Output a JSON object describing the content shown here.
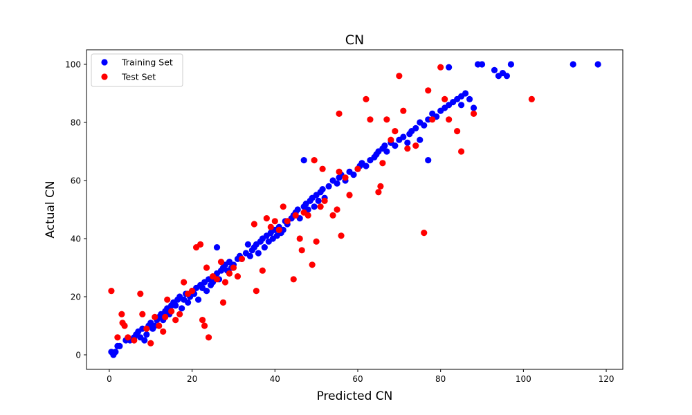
{
  "chart_data": {
    "type": "scatter",
    "title": "CN",
    "xlabel": "Predicted CN",
    "ylabel": "Actual CN",
    "xlim": [
      -5.5,
      124
    ],
    "ylim": [
      -5,
      105
    ],
    "xticks": [
      0,
      20,
      40,
      60,
      80,
      100,
      120
    ],
    "yticks": [
      0,
      20,
      40,
      60,
      80,
      100
    ],
    "grid": false,
    "legend": "top-left",
    "series": [
      {
        "name": "Training Set",
        "color": "#0000ff",
        "points": [
          [
            0.5,
            1
          ],
          [
            1,
            0
          ],
          [
            1.5,
            1
          ],
          [
            2,
            3
          ],
          [
            2.5,
            3
          ],
          [
            4,
            5
          ],
          [
            5,
            5
          ],
          [
            6,
            6
          ],
          [
            6.5,
            7
          ],
          [
            7,
            8
          ],
          [
            7.5,
            6
          ],
          [
            8,
            9
          ],
          [
            8.5,
            5
          ],
          [
            9,
            7
          ],
          [
            9.5,
            10
          ],
          [
            10,
            11
          ],
          [
            10.5,
            9
          ],
          [
            11,
            10
          ],
          [
            11.5,
            12
          ],
          [
            12,
            13
          ],
          [
            12.5,
            14
          ],
          [
            13,
            12
          ],
          [
            13.5,
            15
          ],
          [
            14,
            16
          ],
          [
            14.5,
            14
          ],
          [
            15,
            17
          ],
          [
            15.5,
            18
          ],
          [
            16,
            17
          ],
          [
            16.5,
            19
          ],
          [
            17,
            20
          ],
          [
            17.5,
            16
          ],
          [
            18,
            19
          ],
          [
            18.5,
            21
          ],
          [
            19,
            18
          ],
          [
            19.5,
            20
          ],
          [
            20,
            22
          ],
          [
            20.5,
            21
          ],
          [
            21,
            23
          ],
          [
            21.5,
            19
          ],
          [
            22,
            24
          ],
          [
            22.5,
            23
          ],
          [
            23,
            25
          ],
          [
            23.5,
            22
          ],
          [
            24,
            26
          ],
          [
            24.5,
            24
          ],
          [
            25,
            25
          ],
          [
            25.5,
            27
          ],
          [
            26,
            28
          ],
          [
            26.5,
            26
          ],
          [
            27,
            29
          ],
          [
            27.5,
            30
          ],
          [
            28,
            31
          ],
          [
            28.5,
            29
          ],
          [
            29,
            32
          ],
          [
            29.5,
            30
          ],
          [
            30,
            31
          ],
          [
            31,
            33
          ],
          [
            31.5,
            34
          ],
          [
            32,
            33
          ],
          [
            33,
            35
          ],
          [
            33.5,
            38
          ],
          [
            34,
            34
          ],
          [
            34.5,
            36
          ],
          [
            35,
            37
          ],
          [
            35.5,
            38
          ],
          [
            36,
            35
          ],
          [
            36.5,
            39
          ],
          [
            37,
            40
          ],
          [
            37.5,
            37
          ],
          [
            38,
            41
          ],
          [
            38.5,
            39
          ],
          [
            39,
            42
          ],
          [
            39.5,
            40
          ],
          [
            40,
            43
          ],
          [
            40.5,
            41
          ],
          [
            41,
            44
          ],
          [
            41.5,
            42
          ],
          [
            42,
            43
          ],
          [
            42.5,
            46
          ],
          [
            43,
            45
          ],
          [
            44,
            47
          ],
          [
            44.5,
            48
          ],
          [
            45,
            49
          ],
          [
            45.5,
            50
          ],
          [
            46,
            47
          ],
          [
            47,
            51
          ],
          [
            47.5,
            52
          ],
          [
            48,
            50
          ],
          [
            48.5,
            53
          ],
          [
            49,
            54
          ],
          [
            49.5,
            51
          ],
          [
            50,
            55
          ],
          [
            50.5,
            53
          ],
          [
            51,
            56
          ],
          [
            51.5,
            57
          ],
          [
            52,
            54
          ],
          [
            53,
            58
          ],
          [
            54,
            60
          ],
          [
            55,
            59
          ],
          [
            55.5,
            61
          ],
          [
            56,
            62
          ],
          [
            57,
            60
          ],
          [
            58,
            63
          ],
          [
            59,
            62
          ],
          [
            60,
            64
          ],
          [
            60.5,
            65
          ],
          [
            61,
            66
          ],
          [
            62,
            65
          ],
          [
            63,
            67
          ],
          [
            64,
            68
          ],
          [
            64.5,
            69
          ],
          [
            65,
            70
          ],
          [
            66,
            71
          ],
          [
            66.5,
            72
          ],
          [
            67,
            70
          ],
          [
            68,
            73
          ],
          [
            69,
            72
          ],
          [
            70,
            74
          ],
          [
            71,
            75
          ],
          [
            72,
            73
          ],
          [
            72.5,
            76
          ],
          [
            73,
            77
          ],
          [
            74,
            78
          ],
          [
            75,
            80
          ],
          [
            76,
            79
          ],
          [
            77,
            81
          ],
          [
            78,
            83
          ],
          [
            79,
            82
          ],
          [
            80,
            84
          ],
          [
            81,
            85
          ],
          [
            82,
            86
          ],
          [
            83,
            87
          ],
          [
            84,
            88
          ],
          [
            85,
            89
          ],
          [
            86,
            90
          ],
          [
            87,
            88
          ],
          [
            85,
            86
          ],
          [
            88,
            85
          ],
          [
            89,
            100
          ],
          [
            90,
            100
          ],
          [
            93,
            98
          ],
          [
            94,
            96
          ],
          [
            95,
            97
          ],
          [
            96,
            96
          ],
          [
            97,
            100
          ],
          [
            112,
            100
          ],
          [
            118,
            100
          ],
          [
            47,
            67
          ],
          [
            26,
            37
          ],
          [
            75,
            74
          ],
          [
            77,
            67
          ],
          [
            82,
            99
          ]
        ]
      },
      {
        "name": "Test Set",
        "color": "#ff0000",
        "points": [
          [
            0.5,
            22
          ],
          [
            2,
            6
          ],
          [
            3,
            14
          ],
          [
            3.2,
            11
          ],
          [
            3.7,
            10
          ],
          [
            4.5,
            6
          ],
          [
            6,
            5
          ],
          [
            7.5,
            21
          ],
          [
            8,
            14
          ],
          [
            9,
            9
          ],
          [
            10,
            4
          ],
          [
            11,
            13
          ],
          [
            12,
            10
          ],
          [
            13,
            8
          ],
          [
            13.5,
            13
          ],
          [
            14,
            19
          ],
          [
            15,
            15
          ],
          [
            16,
            12
          ],
          [
            17,
            14
          ],
          [
            18,
            25
          ],
          [
            19,
            21
          ],
          [
            20,
            22
          ],
          [
            21,
            37
          ],
          [
            22,
            38
          ],
          [
            22.5,
            12
          ],
          [
            23,
            10
          ],
          [
            23.5,
            30
          ],
          [
            24,
            6
          ],
          [
            25,
            27
          ],
          [
            26,
            26
          ],
          [
            27,
            32
          ],
          [
            27.5,
            18
          ],
          [
            28,
            25
          ],
          [
            29,
            28
          ],
          [
            30,
            30
          ],
          [
            31,
            27
          ],
          [
            32,
            33
          ],
          [
            35,
            45
          ],
          [
            35.5,
            22
          ],
          [
            37,
            29
          ],
          [
            38,
            47
          ],
          [
            39,
            44
          ],
          [
            40,
            46
          ],
          [
            41,
            43
          ],
          [
            42,
            51
          ],
          [
            43,
            46
          ],
          [
            44.5,
            26
          ],
          [
            45,
            48
          ],
          [
            46,
            40
          ],
          [
            46.5,
            36
          ],
          [
            47,
            49
          ],
          [
            48,
            48
          ],
          [
            49,
            31
          ],
          [
            49.5,
            67
          ],
          [
            50,
            39
          ],
          [
            51,
            51
          ],
          [
            51.5,
            64
          ],
          [
            52,
            53
          ],
          [
            54,
            48
          ],
          [
            55,
            50
          ],
          [
            55.5,
            83
          ],
          [
            55.5,
            63
          ],
          [
            56,
            41
          ],
          [
            57,
            61
          ],
          [
            58,
            55
          ],
          [
            60,
            64
          ],
          [
            62,
            88
          ],
          [
            63,
            81
          ],
          [
            65,
            56
          ],
          [
            65.5,
            58
          ],
          [
            66,
            66
          ],
          [
            67,
            81
          ],
          [
            68,
            74
          ],
          [
            69,
            77
          ],
          [
            70,
            96
          ],
          [
            71,
            84
          ],
          [
            72,
            71
          ],
          [
            74,
            72
          ],
          [
            76,
            42
          ],
          [
            77,
            91
          ],
          [
            78,
            81
          ],
          [
            80,
            99
          ],
          [
            81,
            88
          ],
          [
            82,
            81
          ],
          [
            84,
            77
          ],
          [
            85,
            70
          ],
          [
            88,
            83
          ],
          [
            102,
            88
          ]
        ]
      }
    ]
  }
}
